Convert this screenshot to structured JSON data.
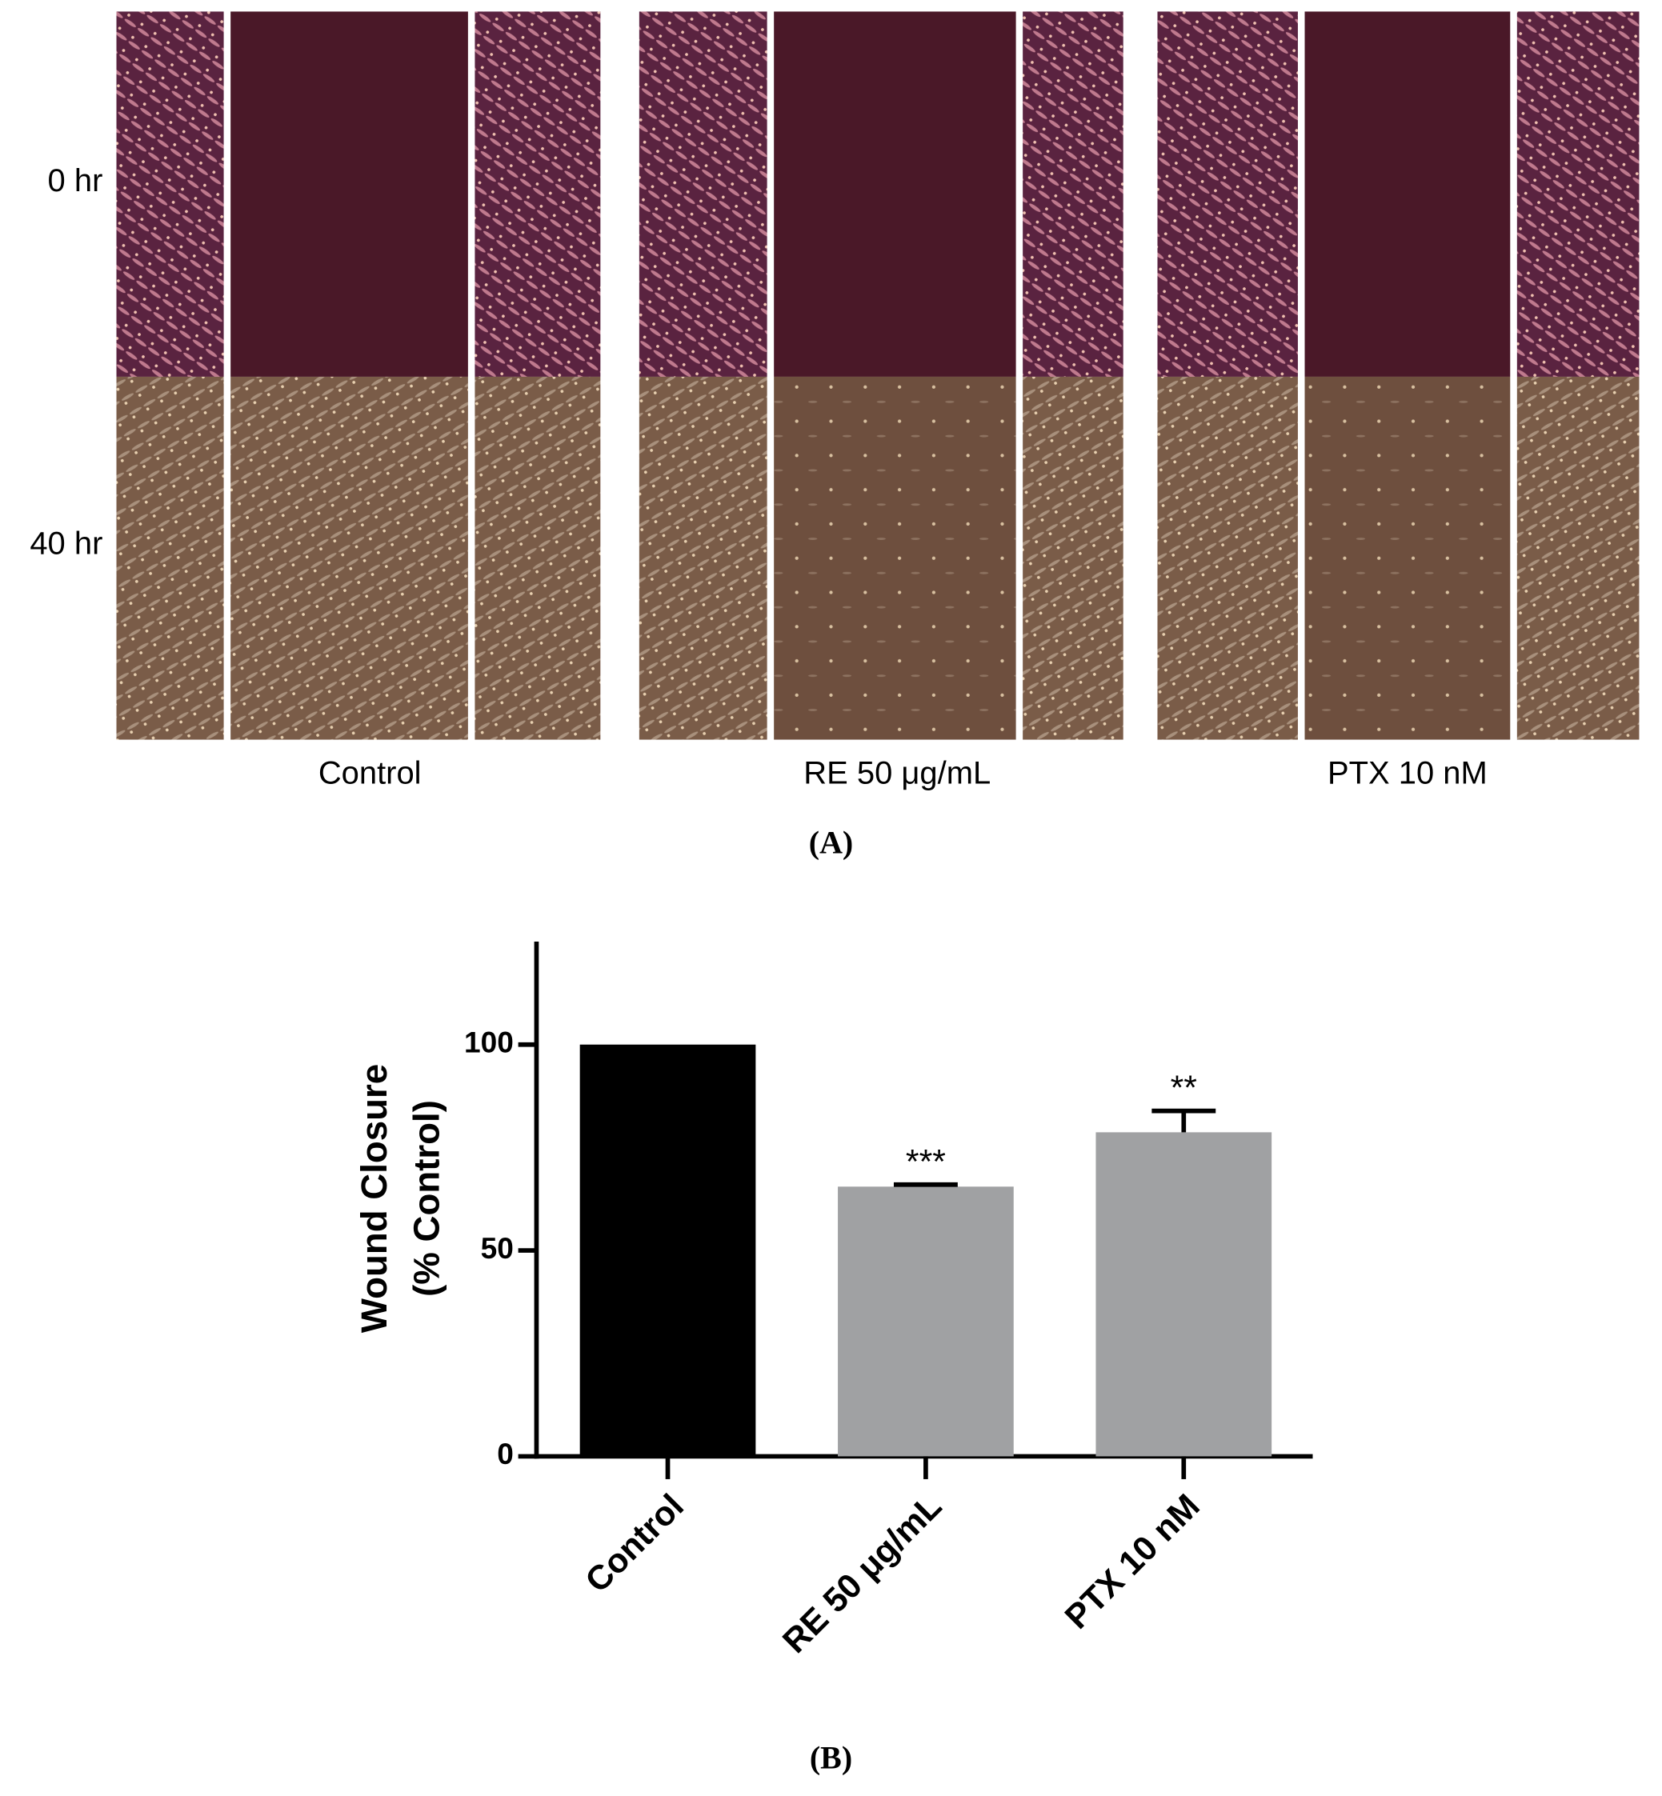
{
  "panel_a": {
    "row_labels": [
      "0 hr",
      "40 hr"
    ],
    "group_labels": [
      "Control",
      "RE 50 μg/mL",
      "PTX 10 nM"
    ],
    "label": "(A)"
  },
  "chart_data": {
    "type": "bar",
    "ylabel_lines": [
      "Wound Closure",
      "(% Control)"
    ],
    "categories": [
      "Control",
      "RE 50 μg/mL",
      "PTX 10 nM"
    ],
    "values": [
      100,
      65.5,
      78.7
    ],
    "errors": [
      null,
      0.5,
      5.2
    ],
    "significance": [
      null,
      "***",
      "**"
    ],
    "colors": [
      "#000000",
      "#a0a1a3",
      "#a0a1a3"
    ],
    "ylim": [
      0,
      125
    ],
    "yticks": [
      0,
      50,
      100
    ],
    "label": "(B)"
  }
}
